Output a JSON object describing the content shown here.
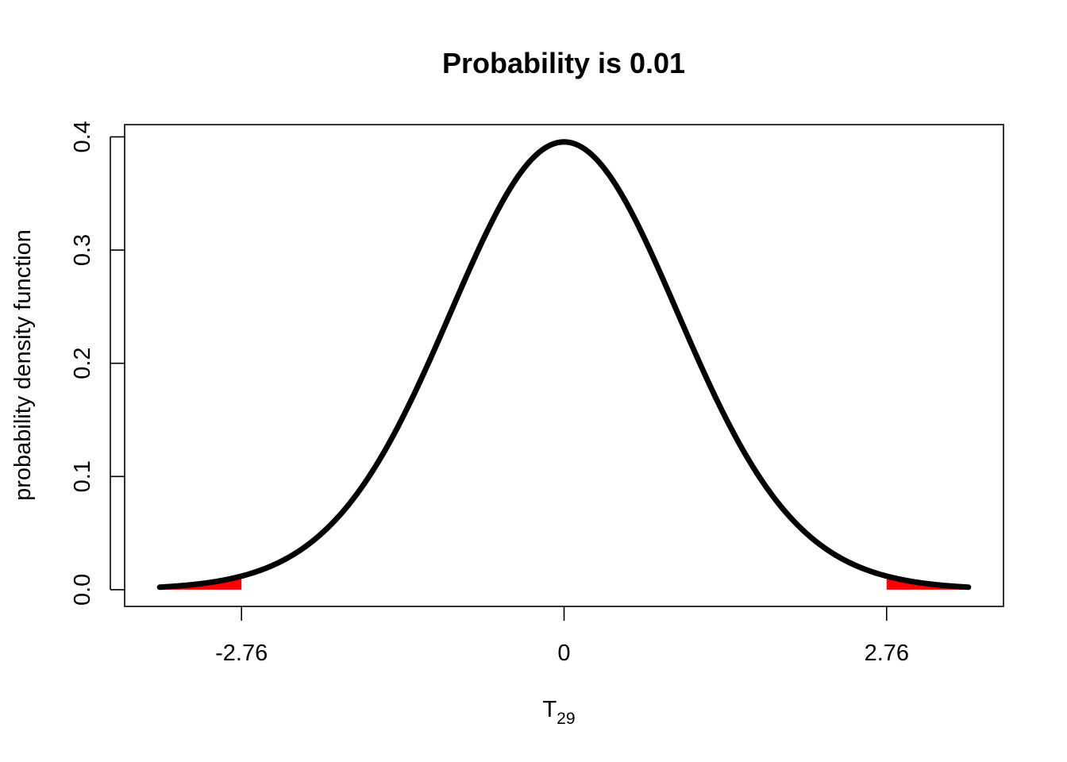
{
  "chart_data": {
    "type": "line",
    "title": "Probability is 0.01",
    "xlabel_main": "T",
    "xlabel_sub": "29",
    "ylabel": "probability density function",
    "degrees_of_freedom": 29,
    "xlim": [
      -3.76,
      3.76
    ],
    "ylim": [
      -0.0148,
      0.4108
    ],
    "curve_x_range": [
      -3.46,
      3.46
    ],
    "x_ticks": [
      {
        "value": -2.76,
        "label": "-2.76"
      },
      {
        "value": 0,
        "label": "0"
      },
      {
        "value": 2.76,
        "label": "2.76"
      }
    ],
    "y_ticks": [
      {
        "value": 0.0,
        "label": "0.0"
      },
      {
        "value": 0.1,
        "label": "0.1"
      },
      {
        "value": 0.2,
        "label": "0.2"
      },
      {
        "value": 0.3,
        "label": "0.3"
      },
      {
        "value": 0.4,
        "label": "0.4"
      }
    ],
    "shaded_regions": [
      {
        "from": -3.46,
        "to": -2.76
      },
      {
        "from": 2.76,
        "to": 3.46
      }
    ],
    "colors": {
      "curve": "#000000",
      "shade": "#ff0000",
      "frame": "#000000"
    },
    "grid": false
  }
}
